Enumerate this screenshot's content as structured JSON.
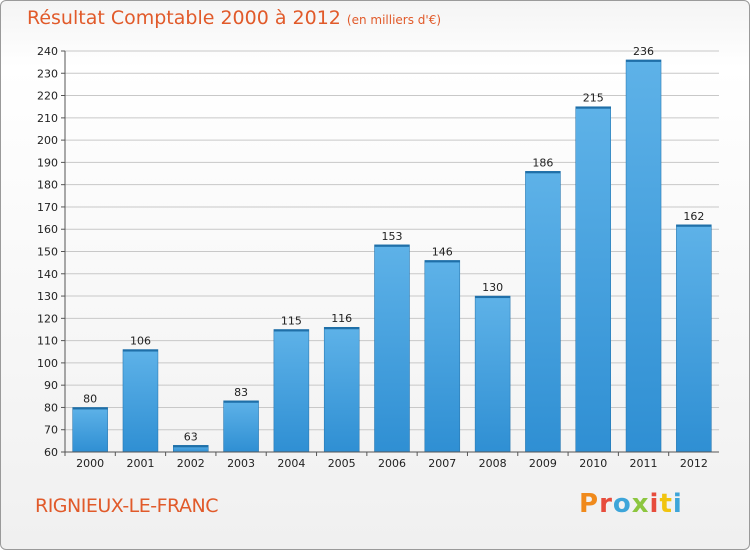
{
  "header": {
    "title": "Résultat Comptable 2000 à 2012",
    "subtitle": "(en milliers d'€)"
  },
  "footer": {
    "commune": "RIGNIEUX-LE-FRANC",
    "logo": [
      "P",
      "r",
      "o",
      "x",
      "i",
      "t",
      "i"
    ]
  },
  "colors": {
    "bar": "#2f8fd3",
    "bar_highlight": "#5eb2e8",
    "title": "#e15a2a",
    "grid": "#c8c8c8"
  },
  "chart_data": {
    "type": "bar",
    "title": "Résultat Comptable 2000 à 2012",
    "subtitle": "(en milliers d'€)",
    "categories": [
      "2000",
      "2001",
      "2002",
      "2003",
      "2004",
      "2005",
      "2006",
      "2007",
      "2008",
      "2009",
      "2010",
      "2011",
      "2012"
    ],
    "values": [
      80,
      106,
      63,
      83,
      115,
      116,
      153,
      146,
      130,
      186,
      215,
      236,
      162
    ],
    "ylim": [
      60,
      240
    ],
    "yticks": [
      60,
      70,
      80,
      90,
      100,
      110,
      120,
      130,
      140,
      150,
      160,
      170,
      180,
      190,
      200,
      210,
      220,
      230,
      240
    ],
    "xlabel": "",
    "ylabel": "",
    "grid": true
  }
}
